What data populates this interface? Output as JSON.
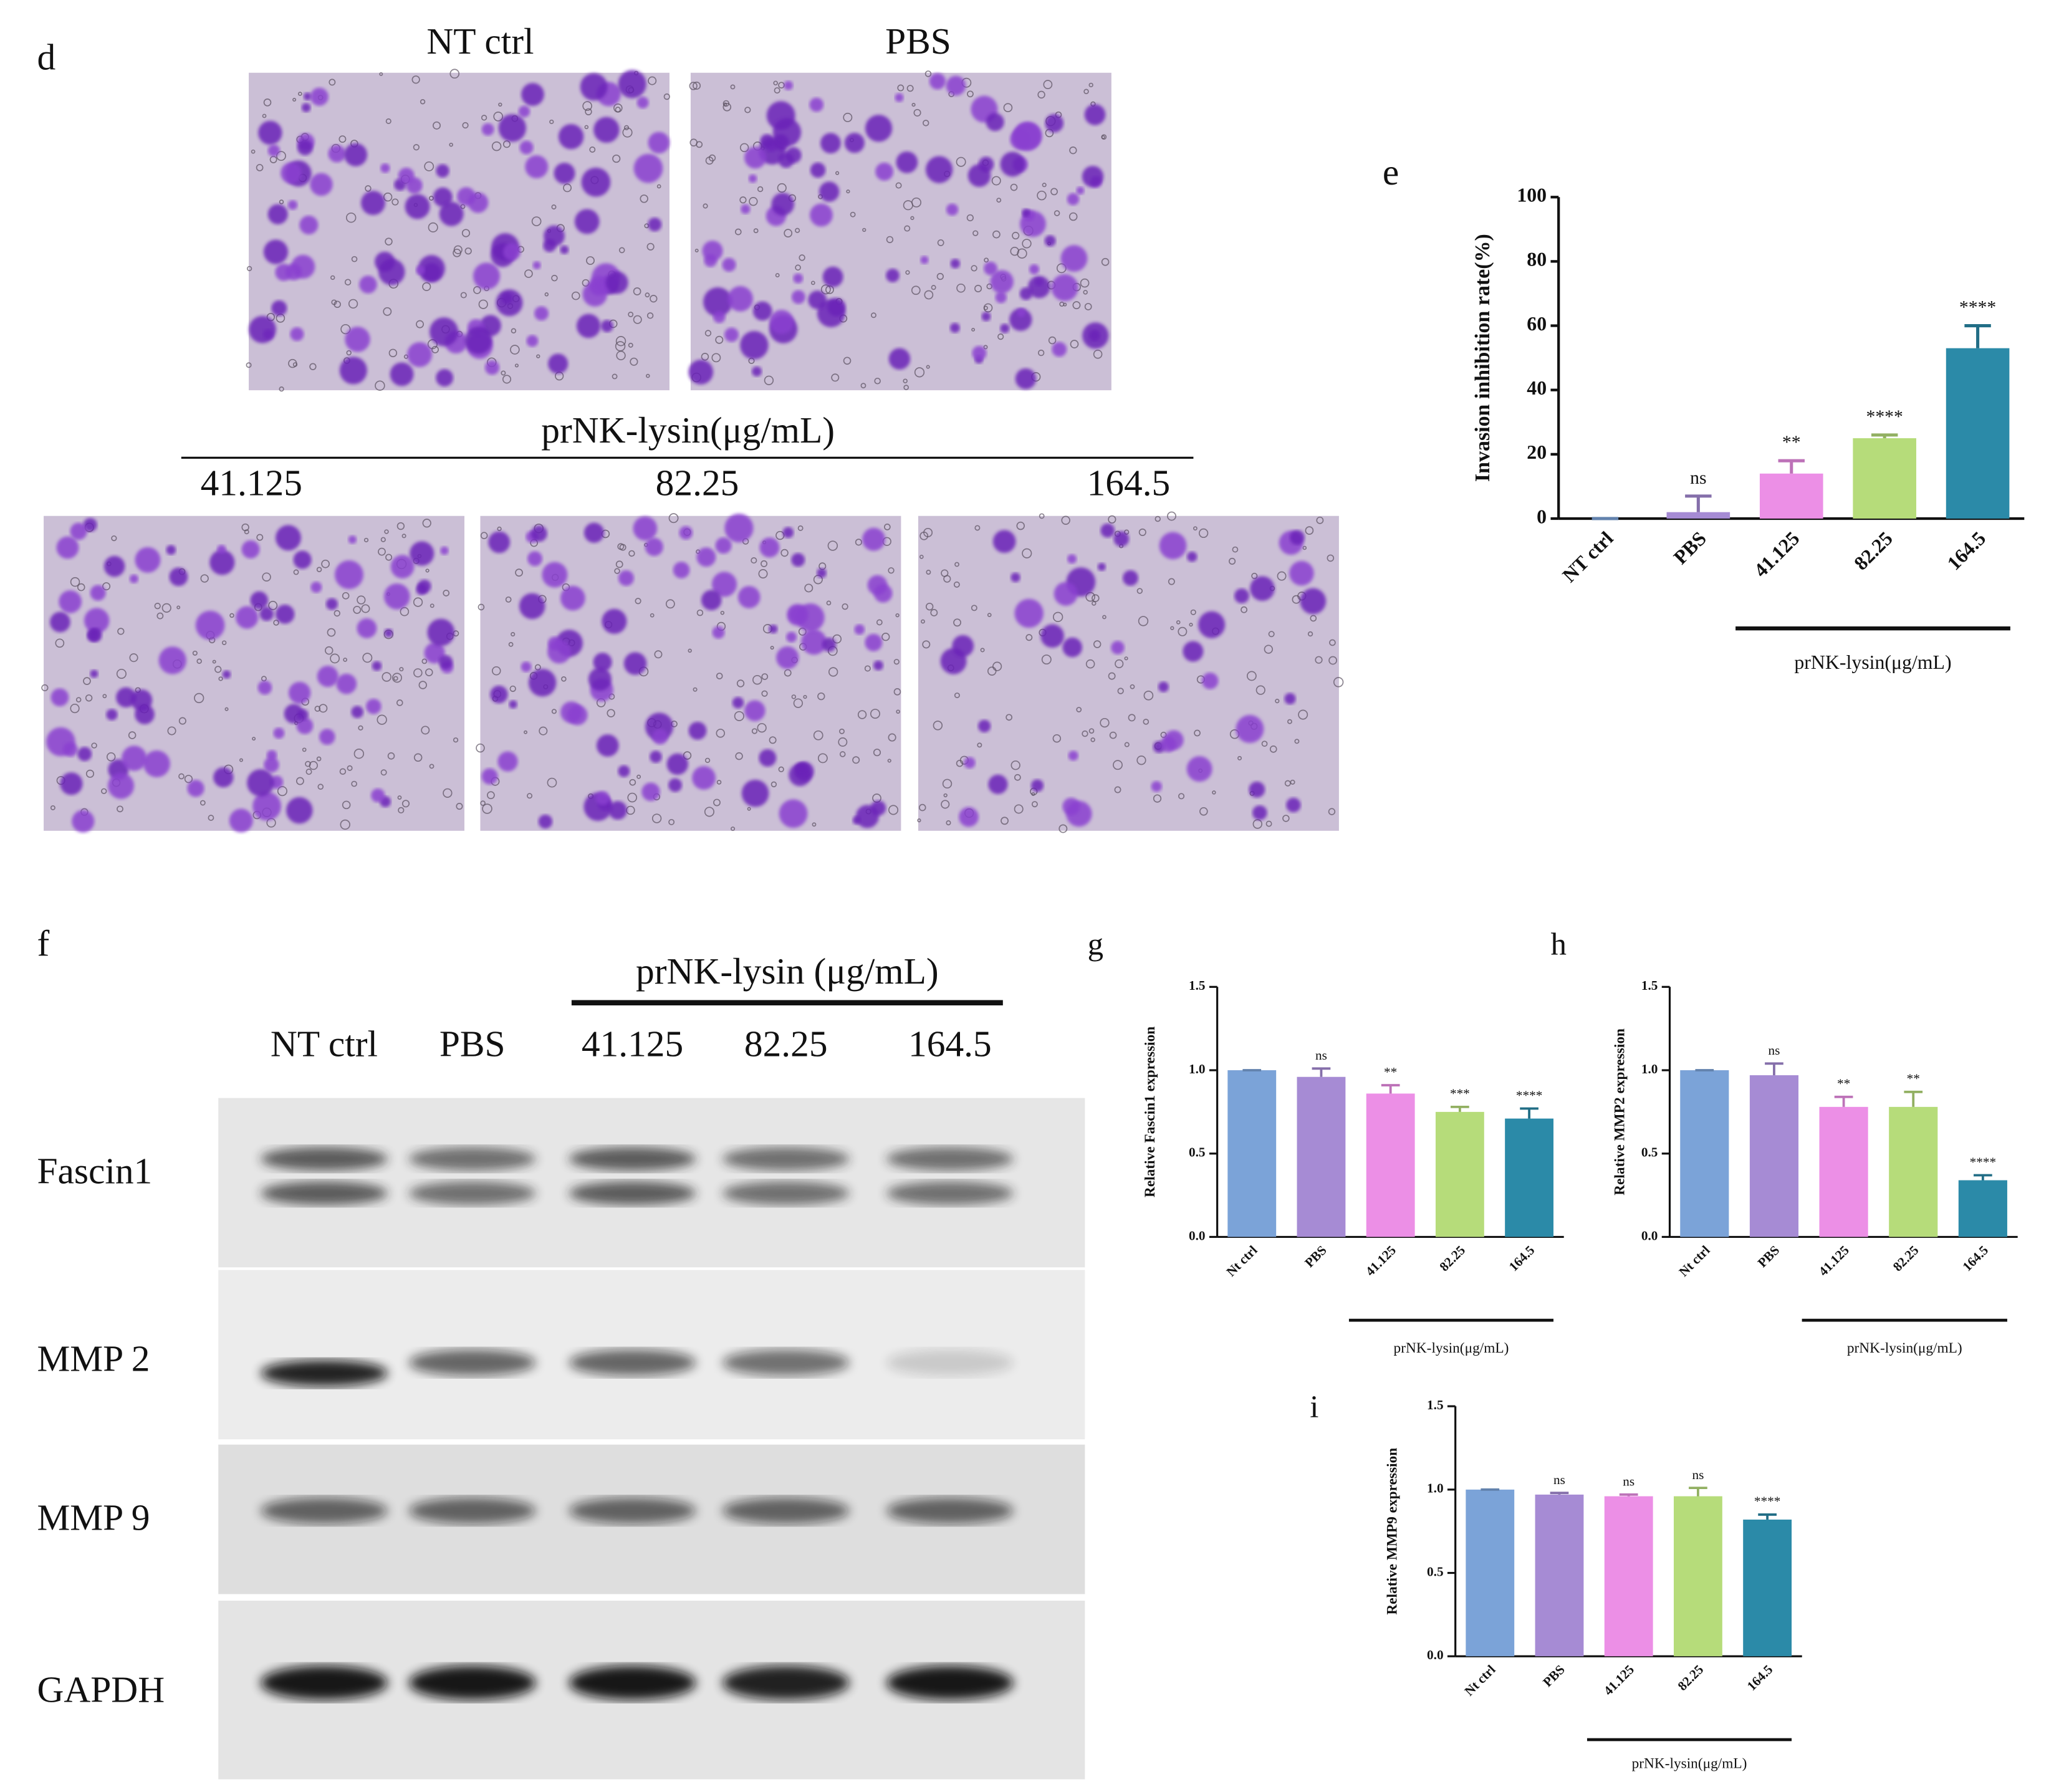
{
  "panels": {
    "d": {
      "label": "d",
      "top_labels": [
        "NT ctrl",
        "PBS"
      ],
      "group_label": "prNK-lysin(μg/mL)",
      "bottom_labels": [
        "41.125",
        "82.25",
        "164.5"
      ]
    },
    "f": {
      "label": "f",
      "group_label": "prNK-lysin (μg/mL)",
      "lanes": [
        "NT ctrl",
        "PBS",
        "41.125",
        "82.25",
        "164.5"
      ],
      "bands": [
        "Fascin1",
        "MMP 2",
        "MMP 9",
        "GAPDH"
      ]
    }
  },
  "chart_data": [
    {
      "type": "bar",
      "panel_label": "e",
      "ylabel": "Invasion inhibition rate(%)",
      "group_label": "prNK-lysin(μg/mL)",
      "categories": [
        "NT ctrl",
        "PBS",
        "41.125",
        "82.25",
        "164.5"
      ],
      "values": [
        0,
        2,
        14,
        25,
        53
      ],
      "errors": [
        0,
        5,
        4,
        1,
        7
      ],
      "annotations": [
        null,
        "ns",
        "**",
        "****",
        "****"
      ],
      "colors": [
        "#7ba3d8",
        "#a68bd4",
        "#ec8fe6",
        "#b6dc7a",
        "#2b8aa8"
      ],
      "ylim": [
        0,
        100
      ],
      "yticks": [
        0,
        20,
        40,
        60,
        80,
        100
      ]
    },
    {
      "type": "bar",
      "panel_label": "g",
      "ylabel": "Relative Fascin1 expression",
      "group_label": "prNK-lysin(μg/mL)",
      "categories": [
        "Nt ctrl",
        "PBS",
        "41.125",
        "82.25",
        "164.5"
      ],
      "values": [
        1.0,
        0.96,
        0.86,
        0.75,
        0.71
      ],
      "errors": [
        0,
        0.05,
        0.05,
        0.03,
        0.06
      ],
      "annotations": [
        null,
        "ns",
        "**",
        "***",
        "****"
      ],
      "colors": [
        "#7ba3d8",
        "#a68bd4",
        "#ec8fe6",
        "#b6dc7a",
        "#2b8aa8"
      ],
      "ylim": [
        0,
        1.5
      ],
      "yticks": [
        {
          "value": 0,
          "label": "0.0"
        },
        0.5,
        {
          "value": 1,
          "label": "1.0"
        },
        1.5
      ]
    },
    {
      "type": "bar",
      "panel_label": "h",
      "ylabel": "Relative MMP2 expression",
      "group_label": "prNK-lysin(μg/mL)",
      "categories": [
        "Nt ctrl",
        "PBS",
        "41.125",
        "82.25",
        "164.5"
      ],
      "values": [
        1.0,
        0.97,
        0.78,
        0.78,
        0.34
      ],
      "errors": [
        0,
        0.07,
        0.06,
        0.09,
        0.03
      ],
      "annotations": [
        null,
        "ns",
        "**",
        "**",
        "****"
      ],
      "colors": [
        "#7ba3d8",
        "#a68bd4",
        "#ec8fe6",
        "#b6dc7a",
        "#2b8aa8"
      ],
      "ylim": [
        0,
        1.5
      ],
      "yticks": [
        {
          "value": 0,
          "label": "0.0"
        },
        0.5,
        {
          "value": 1,
          "label": "1.0"
        },
        1.5
      ]
    },
    {
      "type": "bar",
      "panel_label": "i",
      "ylabel": "Relative MMP9 expression",
      "group_label": "prNK-lysin(μg/mL)",
      "categories": [
        "Nt ctrl",
        "PBS",
        "41.125",
        "82.25",
        "164.5"
      ],
      "values": [
        1.0,
        0.97,
        0.96,
        0.96,
        0.82
      ],
      "errors": [
        0,
        0.01,
        0.01,
        0.05,
        0.03
      ],
      "annotations": [
        null,
        "ns",
        "ns",
        "ns",
        "****"
      ],
      "colors": [
        "#7ba3d8",
        "#a68bd4",
        "#ec8fe6",
        "#b6dc7a",
        "#2b8aa8"
      ],
      "ylim": [
        0,
        1.5
      ],
      "yticks": [
        {
          "value": 0,
          "label": "0.0"
        },
        0.5,
        {
          "value": 1,
          "label": "1.0"
        },
        1.5
      ]
    }
  ]
}
